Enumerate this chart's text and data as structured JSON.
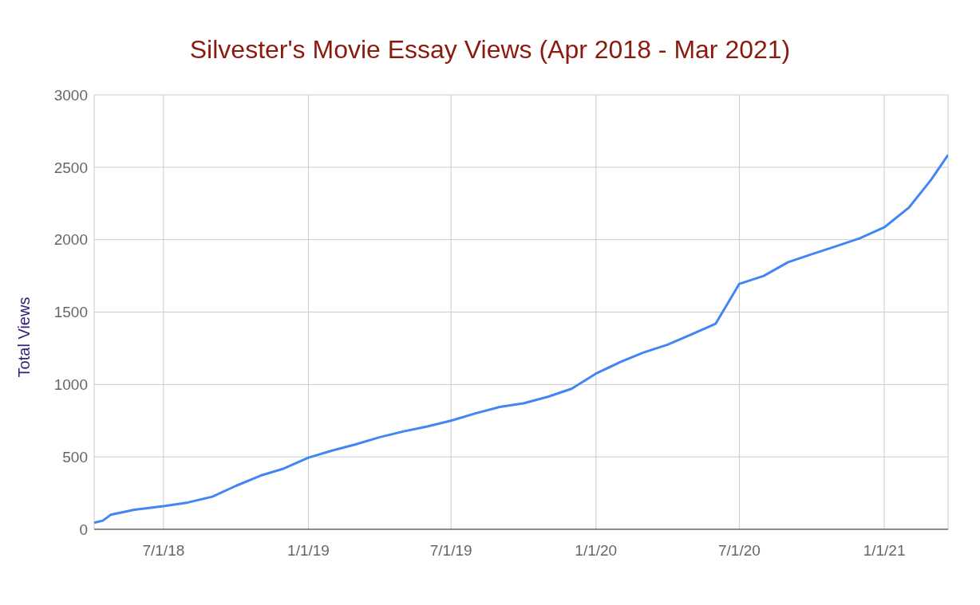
{
  "chart_data": {
    "type": "line",
    "title": "Silvester's Movie Essay Views (Apr 2018 - Mar 2021)",
    "ylabel": "Total Views",
    "x": [
      "2018-04-04",
      "2018-04-15",
      "2018-04-25",
      "2018-05-25",
      "2018-07-01",
      "2018-08-01",
      "2018-09-01",
      "2018-10-01",
      "2018-11-01",
      "2018-12-01",
      "2019-01-01",
      "2019-02-01",
      "2019-03-01",
      "2019-04-01",
      "2019-05-01",
      "2019-06-01",
      "2019-07-01",
      "2019-08-01",
      "2019-09-01",
      "2019-10-01",
      "2019-11-01",
      "2019-12-01",
      "2020-01-01",
      "2020-02-01",
      "2020-03-01",
      "2020-04-01",
      "2020-05-01",
      "2020-06-01",
      "2020-07-01",
      "2020-08-01",
      "2020-09-01",
      "2020-10-01",
      "2020-11-01",
      "2020-12-01",
      "2021-01-01",
      "2021-02-01",
      "2021-03-01",
      "2021-03-23"
    ],
    "series": [
      {
        "color": "#4285f4",
        "values": [
          45,
          60,
          100,
          135,
          160,
          185,
          225,
          300,
          370,
          420,
          495,
          545,
          585,
          635,
          675,
          710,
          750,
          800,
          845,
          870,
          915,
          970,
          1075,
          1155,
          1220,
          1275,
          1345,
          1420,
          1695,
          1750,
          1845,
          1900,
          1955,
          2010,
          2085,
          2220,
          2410,
          2585
        ]
      }
    ],
    "xlim": [
      "2018-04-04",
      "2021-03-23"
    ],
    "xticks": [
      {
        "value": "2018-07-01",
        "label": "7/1/18"
      },
      {
        "value": "2019-01-01",
        "label": "1/1/19"
      },
      {
        "value": "2019-07-01",
        "label": "7/1/19"
      },
      {
        "value": "2020-01-01",
        "label": "1/1/20"
      },
      {
        "value": "2020-07-01",
        "label": "7/1/20"
      },
      {
        "value": "2021-01-01",
        "label": "1/1/21"
      }
    ],
    "ylim": [
      0,
      3000
    ],
    "yticks": [
      0,
      500,
      1000,
      1500,
      2000,
      2500,
      3000
    ],
    "grid": true,
    "marker": "none",
    "line_style": "solid"
  }
}
